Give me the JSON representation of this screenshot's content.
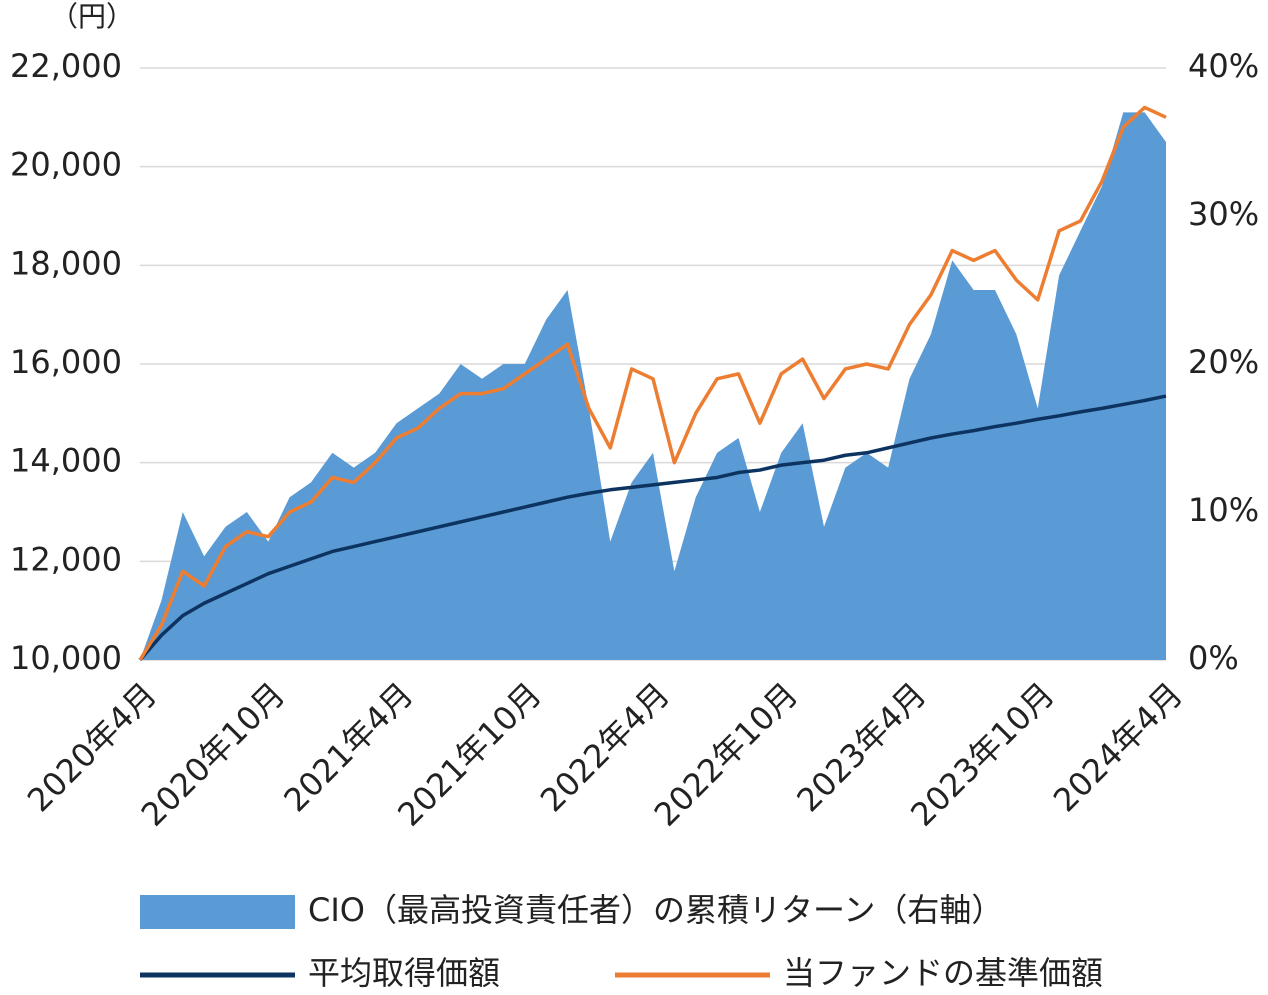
{
  "chart_data": {
    "type": "line",
    "y_unit": "（円）",
    "categories": [
      "2020年4月",
      null,
      null,
      null,
      null,
      null,
      "2020年10月",
      null,
      null,
      null,
      null,
      null,
      "2021年4月",
      null,
      null,
      null,
      null,
      null,
      "2021年10月",
      null,
      null,
      null,
      null,
      null,
      "2022年4月",
      null,
      null,
      null,
      null,
      null,
      "2022年10月",
      null,
      null,
      null,
      null,
      null,
      "2023年4月",
      null,
      null,
      null,
      null,
      null,
      "2023年10月",
      null,
      null,
      null,
      null,
      null,
      "2024年4月"
    ],
    "series": [
      {
        "name": "CIO（最高投資責任者）の累積リターン（右軸）",
        "color": "#5b9bd5",
        "style": "area",
        "axis": "y2",
        "values": [
          0,
          4,
          10,
          7,
          9,
          10,
          8,
          11,
          12,
          14,
          13,
          14,
          16,
          17,
          18,
          20,
          19,
          20,
          20,
          23,
          25,
          17,
          8,
          12,
          14,
          6,
          11,
          14,
          15,
          10,
          14,
          16,
          9,
          13,
          14,
          13,
          19,
          22,
          27,
          25,
          25,
          22,
          17,
          26,
          29,
          32,
          37,
          37,
          35
        ]
      },
      {
        "name": "平均取得価額",
        "color": "#0d3461",
        "style": "line",
        "values": [
          10000,
          10500,
          10900,
          11150,
          11350,
          11550,
          11750,
          11900,
          12050,
          12200,
          12300,
          12400,
          12500,
          12600,
          12700,
          12800,
          12900,
          13000,
          13100,
          13200,
          13300,
          13380,
          13450,
          13500,
          13550,
          13600,
          13650,
          13700,
          13800,
          13850,
          13950,
          14000,
          14050,
          14150,
          14200,
          14300,
          14400,
          14500,
          14580,
          14650,
          14730,
          14800,
          14880,
          14950,
          15030,
          15100,
          15180,
          15260,
          15350
        ]
      },
      {
        "name": "当ファンドの基準価額",
        "color": "#ed7d31",
        "style": "line",
        "values": [
          10000,
          10700,
          11800,
          11500,
          12300,
          12600,
          12500,
          13000,
          13200,
          13700,
          13600,
          14000,
          14500,
          14700,
          15100,
          15400,
          15400,
          15500,
          15800,
          16100,
          16400,
          15100,
          14300,
          15900,
          15700,
          14000,
          15000,
          15700,
          15800,
          14800,
          15800,
          16100,
          15300,
          15900,
          16000,
          15900,
          16800,
          17400,
          18300,
          18100,
          18300,
          17700,
          17300,
          18700,
          18900,
          19700,
          20800,
          21200,
          21000
        ]
      }
    ],
    "ylim": [
      10000,
      22000
    ],
    "yticks": [
      {
        "value": 10000,
        "label": "10,000"
      },
      {
        "value": 12000,
        "label": "12,000"
      },
      {
        "value": 14000,
        "label": "14,000"
      },
      {
        "value": 16000,
        "label": "16,000"
      },
      {
        "value": 18000,
        "label": "18,000"
      },
      {
        "value": 20000,
        "label": "20,000"
      },
      {
        "value": 22000,
        "label": "22,000"
      }
    ],
    "y2lim": [
      0,
      40
    ],
    "y2ticks": [
      {
        "value": 0,
        "label": "0%"
      },
      {
        "value": 10,
        "label": "10%"
      },
      {
        "value": 20,
        "label": "20%"
      },
      {
        "value": 30,
        "label": "30%"
      },
      {
        "value": 40,
        "label": "40%"
      }
    ],
    "grid": true
  }
}
